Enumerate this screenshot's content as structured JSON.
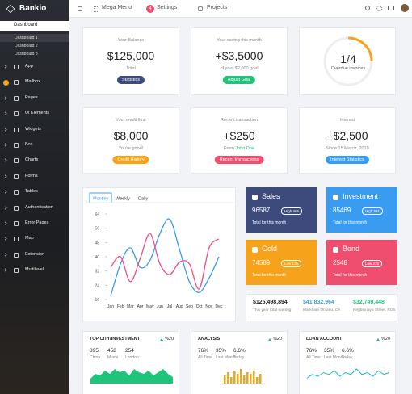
{
  "brand": "Bankio",
  "sidebar": {
    "active": "Dashboard",
    "submenu": [
      "Dashboard 1",
      "Dashboard 2",
      "Dashboard 3"
    ],
    "items": [
      "App",
      "Mailbox",
      "Pages",
      "UI Elements",
      "Widgets",
      "Box",
      "Charts",
      "Forms",
      "Tables",
      "Authentication",
      "Error Pages",
      "Map",
      "Extension",
      "Multilevel"
    ]
  },
  "topbar": {
    "mega_menu": "Mega Menu",
    "settings_badge": "4",
    "settings": "Settings",
    "projects": "Projects"
  },
  "cards": [
    {
      "label": "Your Balance",
      "value": "$125,000",
      "sub": "Total",
      "button": "Statistics",
      "color": "#3d4a7c"
    },
    {
      "label": "Your saving this month",
      "value": "+$3,5000",
      "sub": "of your $2,000 goal",
      "button": "Adjust Goal",
      "color": "#1fc47a"
    },
    {
      "label": "Your credit limit",
      "value": "$8,000",
      "sub": "You're good!",
      "button": "Credit History",
      "color": "#f7a21b"
    },
    {
      "label": "Recent transaction",
      "value": "+$250",
      "sub_prefix": "From",
      "sub": "John Doe",
      "button": "Recent transactions",
      "color": "#f04e6e"
    },
    {
      "label": "Interest",
      "value": "+$2,500",
      "sub": "Since 15 March, 2019",
      "button": "Interest Statistics",
      "color": "#3a9cf0"
    }
  ],
  "ring": {
    "value": "1/4",
    "label": "Overdue invoices"
  },
  "line_chart": {
    "type": "line",
    "tabs": [
      "Monthly",
      "Weekly",
      "Daily"
    ],
    "categories": [
      "Jan",
      "Feb",
      "Mar",
      "Apr",
      "May",
      "Jun",
      "Jul",
      "Aug",
      "Sep",
      "Oct",
      "Nov",
      "Dec"
    ],
    "ylim": [
      16,
      64
    ],
    "yticks": [
      16,
      24,
      32,
      40,
      48,
      56,
      64
    ],
    "series": [
      {
        "color": "#3a9cf0",
        "values": [
          18,
          36,
          45,
          34,
          38,
          53,
          61,
          44,
          26,
          20,
          28,
          40
        ]
      },
      {
        "color": "#f04e8a",
        "values": [
          34,
          40,
          26,
          39,
          53,
          36,
          30,
          37,
          36,
          22,
          45,
          50
        ]
      }
    ]
  },
  "tiles": [
    {
      "name": "Sales",
      "value": "96587",
      "badge": "High 465",
      "note": "Total for this month",
      "color": "#3d4a7c"
    },
    {
      "name": "Investment",
      "value": "85469",
      "badge": "High 581",
      "note": "Total for this month",
      "color": "#3a9cf0"
    },
    {
      "name": "Gold",
      "value": "74589",
      "badge": "Low 125",
      "note": "Total for this month",
      "color": "#f7a21b"
    },
    {
      "name": "Bond",
      "value": "2548",
      "badge": "Low 235",
      "note": "Total for this month",
      "color": "#f04e6e"
    }
  ],
  "earnings": [
    {
      "value": "$125,498,894",
      "label": "This year total earning",
      "color": "#222222"
    },
    {
      "value": "$41,832,964",
      "label": "Markham Ontario, CA",
      "color": "#3a9cf0"
    },
    {
      "value": "$32,749,448",
      "label": "Negbinnaya Street, RUS",
      "color": "#1fc47a"
    }
  ],
  "mini": [
    {
      "title": "TOP CITY/INVESTMENT",
      "change": "%20",
      "type": "area",
      "color": "#1fc47a",
      "stats": [
        {
          "value": "895",
          "label": "China"
        },
        {
          "value": "458",
          "label": "Miami"
        },
        {
          "value": "254",
          "label": "London"
        }
      ],
      "values": [
        3,
        6,
        5,
        8,
        6,
        9,
        7,
        8,
        5,
        9,
        7,
        6,
        8,
        5,
        7,
        9,
        6,
        4
      ]
    },
    {
      "title": "ANALYSIS",
      "change": "%20",
      "type": "bar",
      "color": "#f7a21b",
      "stats": [
        {
          "value": "76%",
          "label": "All Time"
        },
        {
          "value": "35%",
          "label": "Last Month"
        },
        {
          "value": "6.6%",
          "label": "Today"
        }
      ],
      "values": [
        5,
        7,
        4,
        8,
        6,
        9,
        5,
        7,
        6,
        8,
        4,
        6
      ]
    },
    {
      "title": "LOAN ACCOUNT",
      "change": "%20",
      "type": "line",
      "color": "#1fb5c4",
      "stats": [
        {
          "value": "76%",
          "label": "All Time"
        },
        {
          "value": "35%",
          "label": "Last Month"
        },
        {
          "value": "6.6%",
          "label": "Today"
        }
      ],
      "values": [
        3,
        5,
        4,
        6,
        5,
        7,
        4,
        6,
        5,
        8,
        5,
        6,
        4,
        7,
        5,
        6
      ]
    }
  ]
}
